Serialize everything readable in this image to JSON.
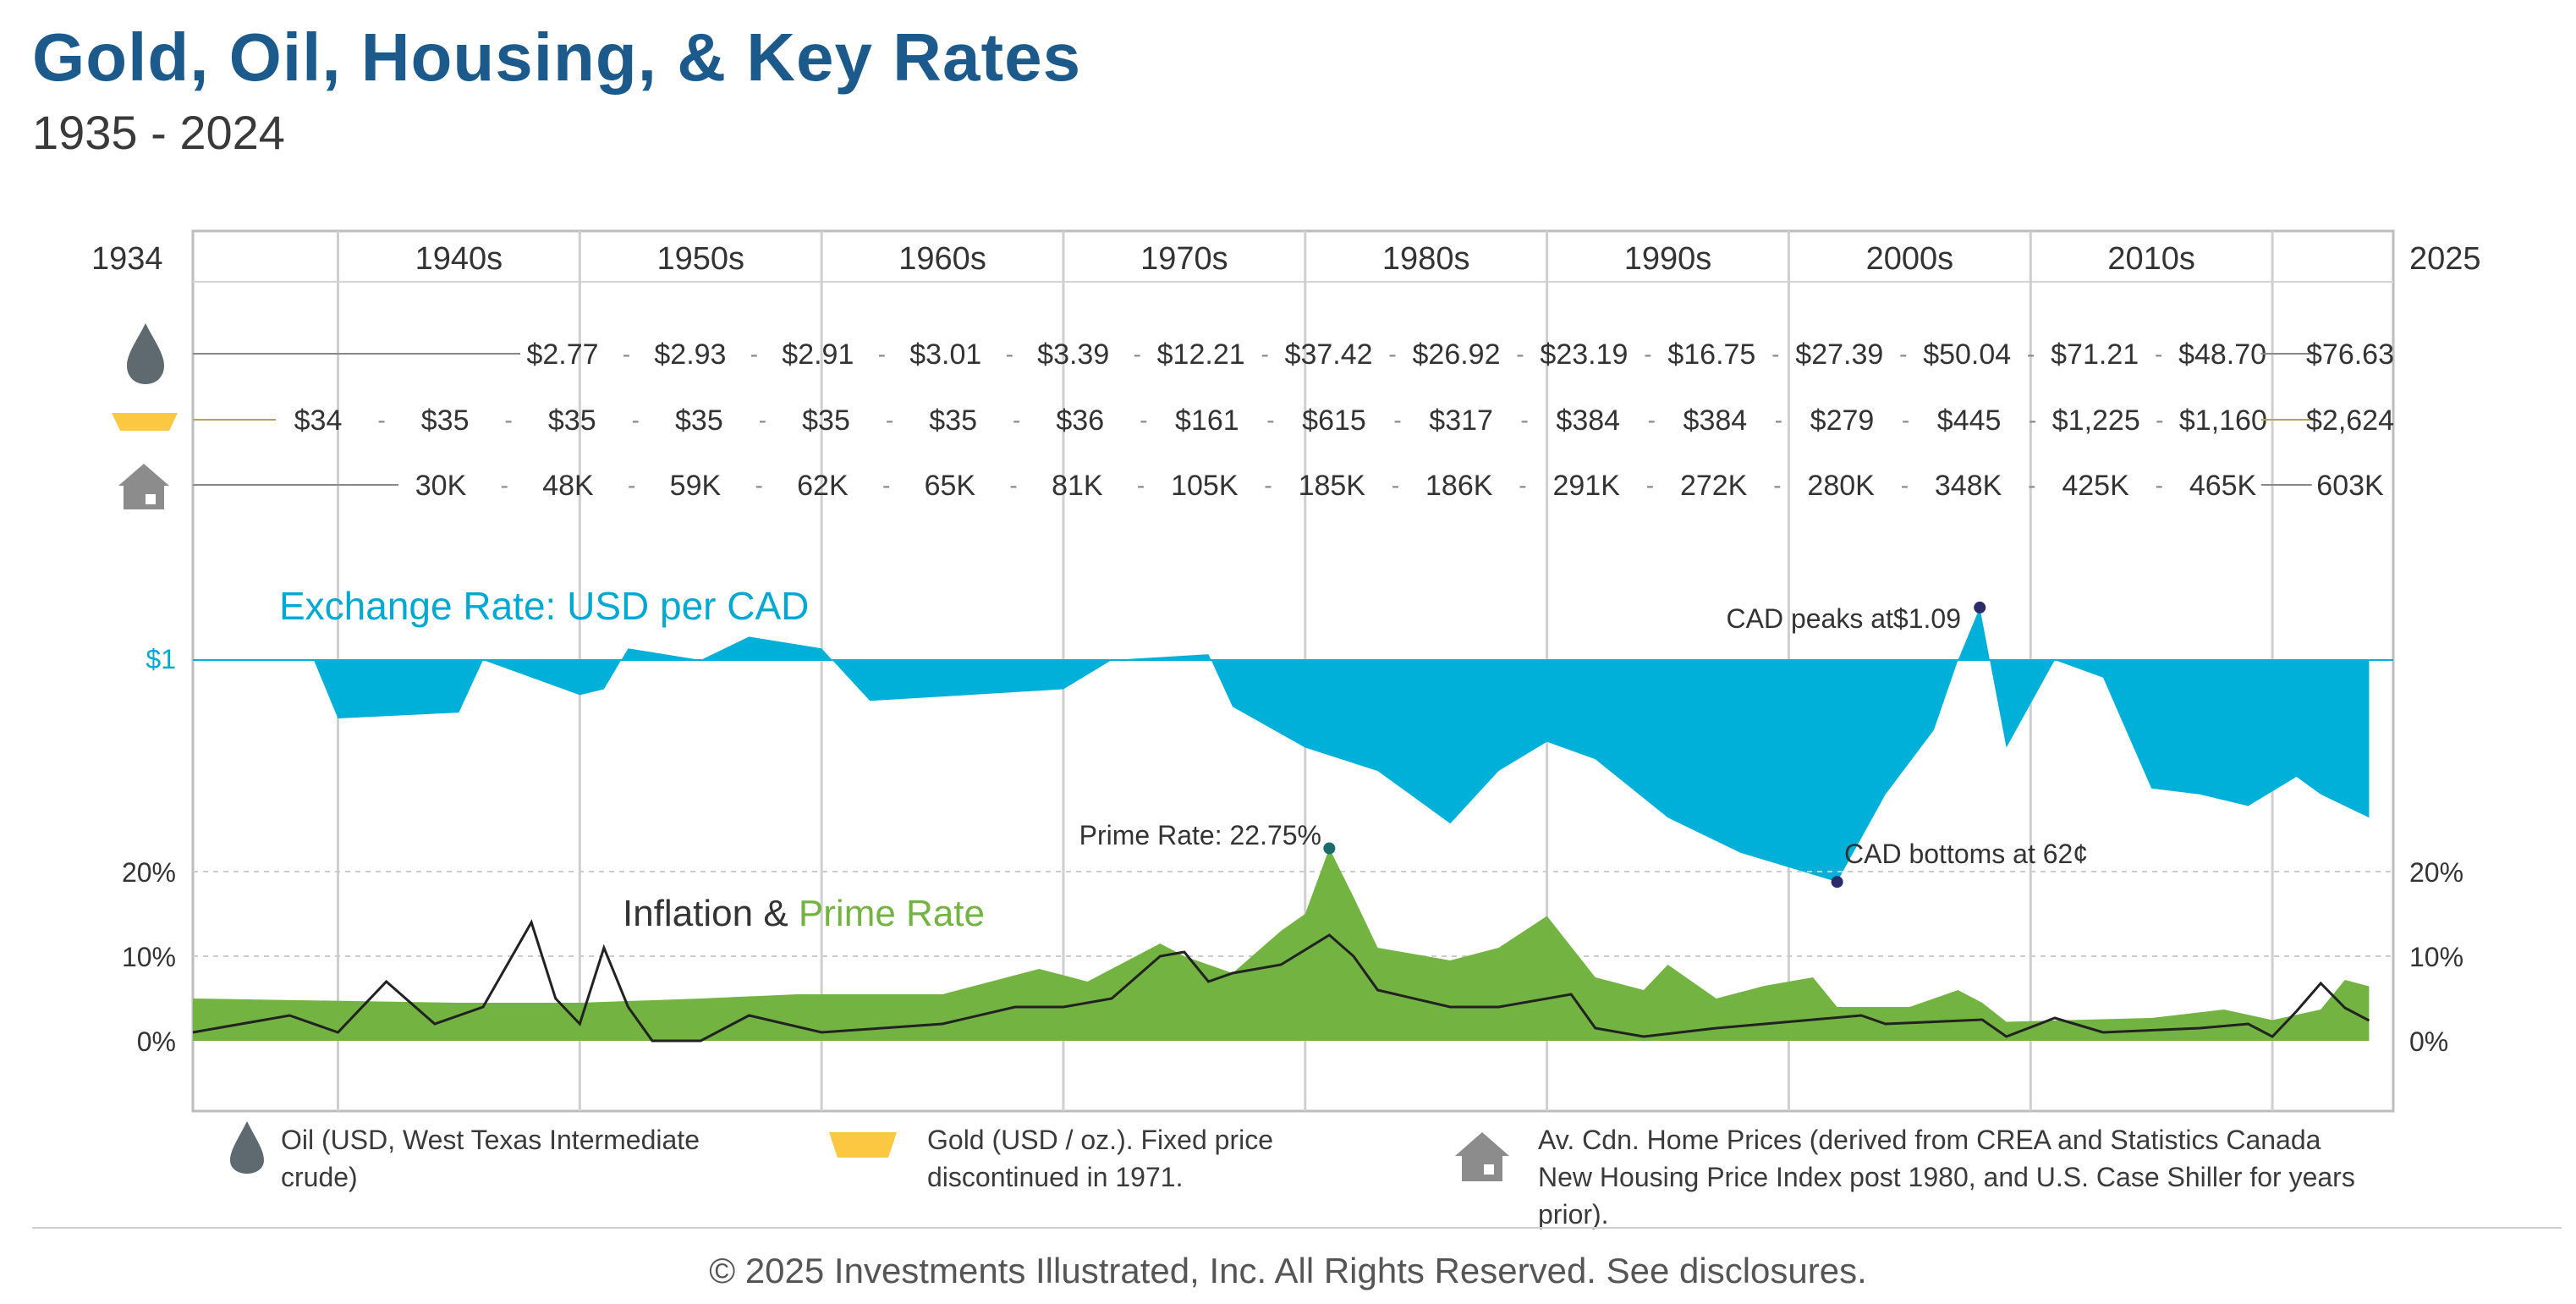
{
  "title": "Gold, Oil, Housing, & Key Rates",
  "subtitle": "1935 - 2024",
  "colors": {
    "title": "#1c5a8c",
    "exchange": "#00b0d8",
    "prime": "#72b342",
    "inflation": "#222222",
    "oil": "#5f6a70",
    "gold": "#fcc741",
    "house": "#8c8c8c",
    "marker": "#2b2a6b"
  },
  "chart_data": {
    "type": "area",
    "start_year": "1934",
    "end_year": "2025",
    "decades": [
      "1940s",
      "1950s",
      "1960s",
      "1970s",
      "1980s",
      "1990s",
      "2000s",
      "2010s"
    ],
    "oil_prices": [
      "$2.77",
      "$2.93",
      "$2.91",
      "$3.01",
      "$3.39",
      "$12.21",
      "$37.42",
      "$26.92",
      "$23.19",
      "$16.75",
      "$27.39",
      "$50.04",
      "$71.21",
      "$48.70",
      "$76.63"
    ],
    "gold_prices": [
      "$34",
      "$35",
      "$35",
      "$35",
      "$35",
      "$35",
      "$36",
      "$161",
      "$615",
      "$317",
      "$384",
      "$384",
      "$279",
      "$445",
      "$1,225",
      "$1,160",
      "$2,624"
    ],
    "home_prices": [
      "30K",
      "48K",
      "59K",
      "62K",
      "65K",
      "81K",
      "105K",
      "185K",
      "186K",
      "291K",
      "272K",
      "280K",
      "348K",
      "425K",
      "465K",
      "603K"
    ],
    "exchange_title": "Exchange Rate: USD per CAD",
    "exchange_ref_label": "$1",
    "exchange_rate": [
      [
        1934,
        1.0
      ],
      [
        1939,
        1.0
      ],
      [
        1940,
        0.9
      ],
      [
        1945,
        0.91
      ],
      [
        1946,
        1.0
      ],
      [
        1950,
        0.94
      ],
      [
        1951,
        0.95
      ],
      [
        1952,
        1.02
      ],
      [
        1955,
        1.0
      ],
      [
        1957,
        1.04
      ],
      [
        1960,
        1.02
      ],
      [
        1962,
        0.93
      ],
      [
        1970,
        0.95
      ],
      [
        1972,
        1.0
      ],
      [
        1976,
        1.01
      ],
      [
        1977,
        0.92
      ],
      [
        1980,
        0.85
      ],
      [
        1983,
        0.81
      ],
      [
        1986,
        0.72
      ],
      [
        1988,
        0.81
      ],
      [
        1990,
        0.86
      ],
      [
        1992,
        0.83
      ],
      [
        1995,
        0.73
      ],
      [
        1998,
        0.67
      ],
      [
        2002,
        0.62
      ],
      [
        2004,
        0.77
      ],
      [
        2006,
        0.88
      ],
      [
        2007,
        1.0
      ],
      [
        2007.9,
        1.09
      ],
      [
        2009,
        0.85
      ],
      [
        2011,
        1.0
      ],
      [
        2013,
        0.97
      ],
      [
        2015,
        0.78
      ],
      [
        2017,
        0.77
      ],
      [
        2019,
        0.75
      ],
      [
        2021,
        0.8
      ],
      [
        2022,
        0.77
      ],
      [
        2024,
        0.73
      ]
    ],
    "annotations": {
      "cad_peak": "CAD peaks at$1.09",
      "cad_bottom": "CAD bottoms at 62¢",
      "prime_peak": "Prime Rate: 22.75%"
    },
    "rate_title_part1": "Inflation &",
    "rate_title_part2": "Prime Rate",
    "rate_ticks": [
      "20%",
      "10%",
      "0%"
    ],
    "prime_rate": [
      [
        1934,
        5
      ],
      [
        1945,
        4.5
      ],
      [
        1950,
        4.5
      ],
      [
        1955,
        5
      ],
      [
        1959,
        5.5
      ],
      [
        1962,
        5.5
      ],
      [
        1965,
        5.5
      ],
      [
        1969,
        8.5
      ],
      [
        1971,
        7
      ],
      [
        1974,
        11.5
      ],
      [
        1975,
        10
      ],
      [
        1977,
        8
      ],
      [
        1979,
        13
      ],
      [
        1980,
        15
      ],
      [
        1981,
        22.75
      ],
      [
        1982,
        17
      ],
      [
        1983,
        11
      ],
      [
        1986,
        9.5
      ],
      [
        1988,
        11
      ],
      [
        1990,
        14.75
      ],
      [
        1992,
        7.5
      ],
      [
        1994,
        6
      ],
      [
        1995,
        9
      ],
      [
        1997,
        5
      ],
      [
        1999,
        6.5
      ],
      [
        2001,
        7.5
      ],
      [
        2002,
        4
      ],
      [
        2005,
        4
      ],
      [
        2007,
        6
      ],
      [
        2008,
        4.5
      ],
      [
        2009,
        2.25
      ],
      [
        2015,
        2.7
      ],
      [
        2018,
        3.7
      ],
      [
        2020,
        2.45
      ],
      [
        2022,
        3.7
      ],
      [
        2023,
        7.2
      ],
      [
        2024,
        6.45
      ]
    ],
    "inflation": [
      [
        1934,
        1
      ],
      [
        1936,
        2
      ],
      [
        1938,
        3
      ],
      [
        1940,
        1
      ],
      [
        1942,
        7
      ],
      [
        1944,
        2
      ],
      [
        1946,
        4
      ],
      [
        1947,
        9
      ],
      [
        1948,
        14
      ],
      [
        1949,
        5
      ],
      [
        1950,
        2
      ],
      [
        1951,
        11
      ],
      [
        1952,
        4
      ],
      [
        1953,
        0
      ],
      [
        1955,
        0
      ],
      [
        1957,
        3
      ],
      [
        1960,
        1
      ],
      [
        1965,
        2
      ],
      [
        1968,
        4
      ],
      [
        1970,
        4
      ],
      [
        1972,
        5
      ],
      [
        1974,
        10
      ],
      [
        1975,
        10.5
      ],
      [
        1976,
        7
      ],
      [
        1977,
        8
      ],
      [
        1979,
        9
      ],
      [
        1981,
        12.5
      ],
      [
        1982,
        10
      ],
      [
        1983,
        6
      ],
      [
        1986,
        4
      ],
      [
        1988,
        4
      ],
      [
        1991,
        5.5
      ],
      [
        1992,
        1.5
      ],
      [
        1994,
        0.5
      ],
      [
        1997,
        1.5
      ],
      [
        2001,
        2.5
      ],
      [
        2003,
        3
      ],
      [
        2004,
        2
      ],
      [
        2008,
        2.5
      ],
      [
        2009,
        0.5
      ],
      [
        2011,
        2.7
      ],
      [
        2013,
        1
      ],
      [
        2017,
        1.5
      ],
      [
        2019,
        2
      ],
      [
        2020,
        0.5
      ],
      [
        2021,
        3.5
      ],
      [
        2022,
        6.8
      ],
      [
        2023,
        3.9
      ],
      [
        2024,
        2.4
      ]
    ]
  },
  "legend": {
    "oil": "Oil (USD, West Texas Intermediate crude)",
    "gold": "Gold (USD / oz.). Fixed price discontinued in 1971.",
    "house": "Av. Cdn. Home Prices (derived from CREA and Statistics Canada New Housing Price Index post 1980, and U.S. Case Shiller for years prior)."
  },
  "footer": "© 2025 Investments Illustrated, Inc. All Rights Reserved. See disclosures."
}
